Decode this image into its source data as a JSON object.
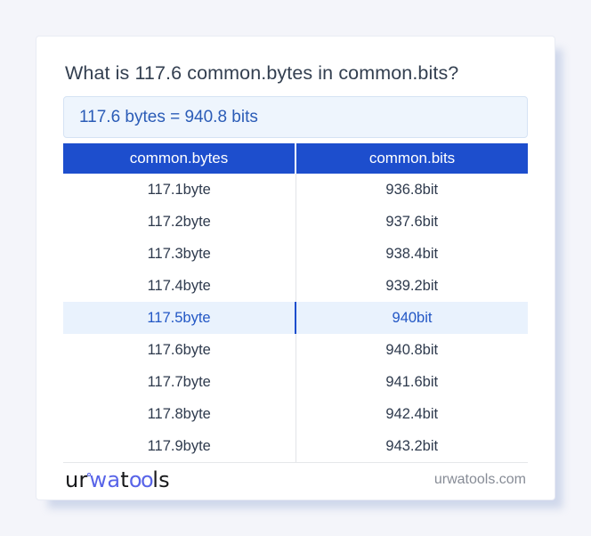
{
  "title": "What is 117.6 common.bytes in common.bits?",
  "result": "117.6 bytes = 940.8 bits",
  "table": {
    "headers": [
      "common.bytes",
      "common.bits"
    ],
    "rows": [
      {
        "bytes": "117.1byte",
        "bits": "936.8bit",
        "highlighted": false
      },
      {
        "bytes": "117.2byte",
        "bits": "937.6bit",
        "highlighted": false
      },
      {
        "bytes": "117.3byte",
        "bits": "938.4bit",
        "highlighted": false
      },
      {
        "bytes": "117.4byte",
        "bits": "939.2bit",
        "highlighted": false
      },
      {
        "bytes": "117.5byte",
        "bits": "940bit",
        "highlighted": true
      },
      {
        "bytes": "117.6byte",
        "bits": "940.8bit",
        "highlighted": false
      },
      {
        "bytes": "117.7byte",
        "bits": "941.6bit",
        "highlighted": false
      },
      {
        "bytes": "117.8byte",
        "bits": "942.4bit",
        "highlighted": false
      },
      {
        "bytes": "117.9byte",
        "bits": "943.2bit",
        "highlighted": false
      }
    ]
  },
  "footer": {
    "logo_parts": {
      "p1": "ur",
      "p2": "wa",
      "p3": "t",
      "p4": "oo",
      "p5": "ls"
    },
    "site": "urwatools.com"
  },
  "colors": {
    "page_bg": "#f4f5fa",
    "accent": "#1d4ecd",
    "result_text": "#2b5cb7",
    "highlight_text": "#2257c5",
    "logo_blue": "#5864e8"
  }
}
